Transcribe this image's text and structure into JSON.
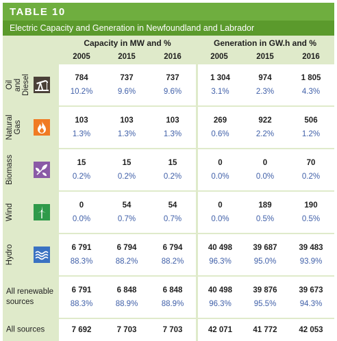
{
  "table": {
    "number_label": "TABLE 10",
    "title": "Electric Capacity and Generation in Newfoundland and Labrador",
    "capacity_header": "Capacity in MW and %",
    "generation_header": "Generation in GW.h and %",
    "years": [
      "2005",
      "2015",
      "2016",
      "2005",
      "2015",
      "2016"
    ]
  },
  "rows": [
    {
      "label": "Oil and\nDiesel",
      "icon": "oil-pump-icon",
      "icon_color": "#4a4038",
      "values": [
        "784",
        "737",
        "737",
        "1 304",
        "974",
        "1 805"
      ],
      "percents": [
        "10.2%",
        "9.6%",
        "9.6%",
        "3.1%",
        "2.3%",
        "4.3%"
      ]
    },
    {
      "label": "Natural\nGas",
      "icon": "flame-icon",
      "icon_color": "#f07b24",
      "values": [
        "103",
        "103",
        "103",
        "269",
        "922",
        "506"
      ],
      "percents": [
        "1.3%",
        "1.3%",
        "1.3%",
        "0.6%",
        "2.2%",
        "1.2%"
      ]
    },
    {
      "label": "Biomass",
      "icon": "leaves-icon",
      "icon_color": "#8a5aa6",
      "values": [
        "15",
        "15",
        "15",
        "0",
        "0",
        "70"
      ],
      "percents": [
        "0.2%",
        "0.2%",
        "0.2%",
        "0.0%",
        "0.0%",
        "0.2%"
      ]
    },
    {
      "label": "Wind",
      "icon": "wind-turbine-icon",
      "icon_color": "#2f9a4a",
      "values": [
        "0",
        "54",
        "54",
        "0",
        "189",
        "190"
      ],
      "percents": [
        "0.0%",
        "0.7%",
        "0.7%",
        "0.0%",
        "0.5%",
        "0.5%"
      ]
    },
    {
      "label": "Hydro",
      "icon": "water-waves-icon",
      "icon_color": "#3a72c2",
      "values": [
        "6 791",
        "6 794",
        "6 794",
        "40 498",
        "39 687",
        "39 483"
      ],
      "percents": [
        "88.3%",
        "88.2%",
        "88.2%",
        "96.3%",
        "95.0%",
        "93.9%"
      ]
    }
  ],
  "renewable": {
    "label": "All renewable\nsources",
    "values": [
      "6 791",
      "6 848",
      "6 848",
      "40 498",
      "39 876",
      "39 673"
    ],
    "percents": [
      "88.3%",
      "88.9%",
      "88.9%",
      "96.3%",
      "95.5%",
      "94.3%"
    ]
  },
  "all_sources": {
    "label": "All sources",
    "values": [
      "7 692",
      "7 703",
      "7 703",
      "42 071",
      "41 772",
      "42 053"
    ]
  }
}
